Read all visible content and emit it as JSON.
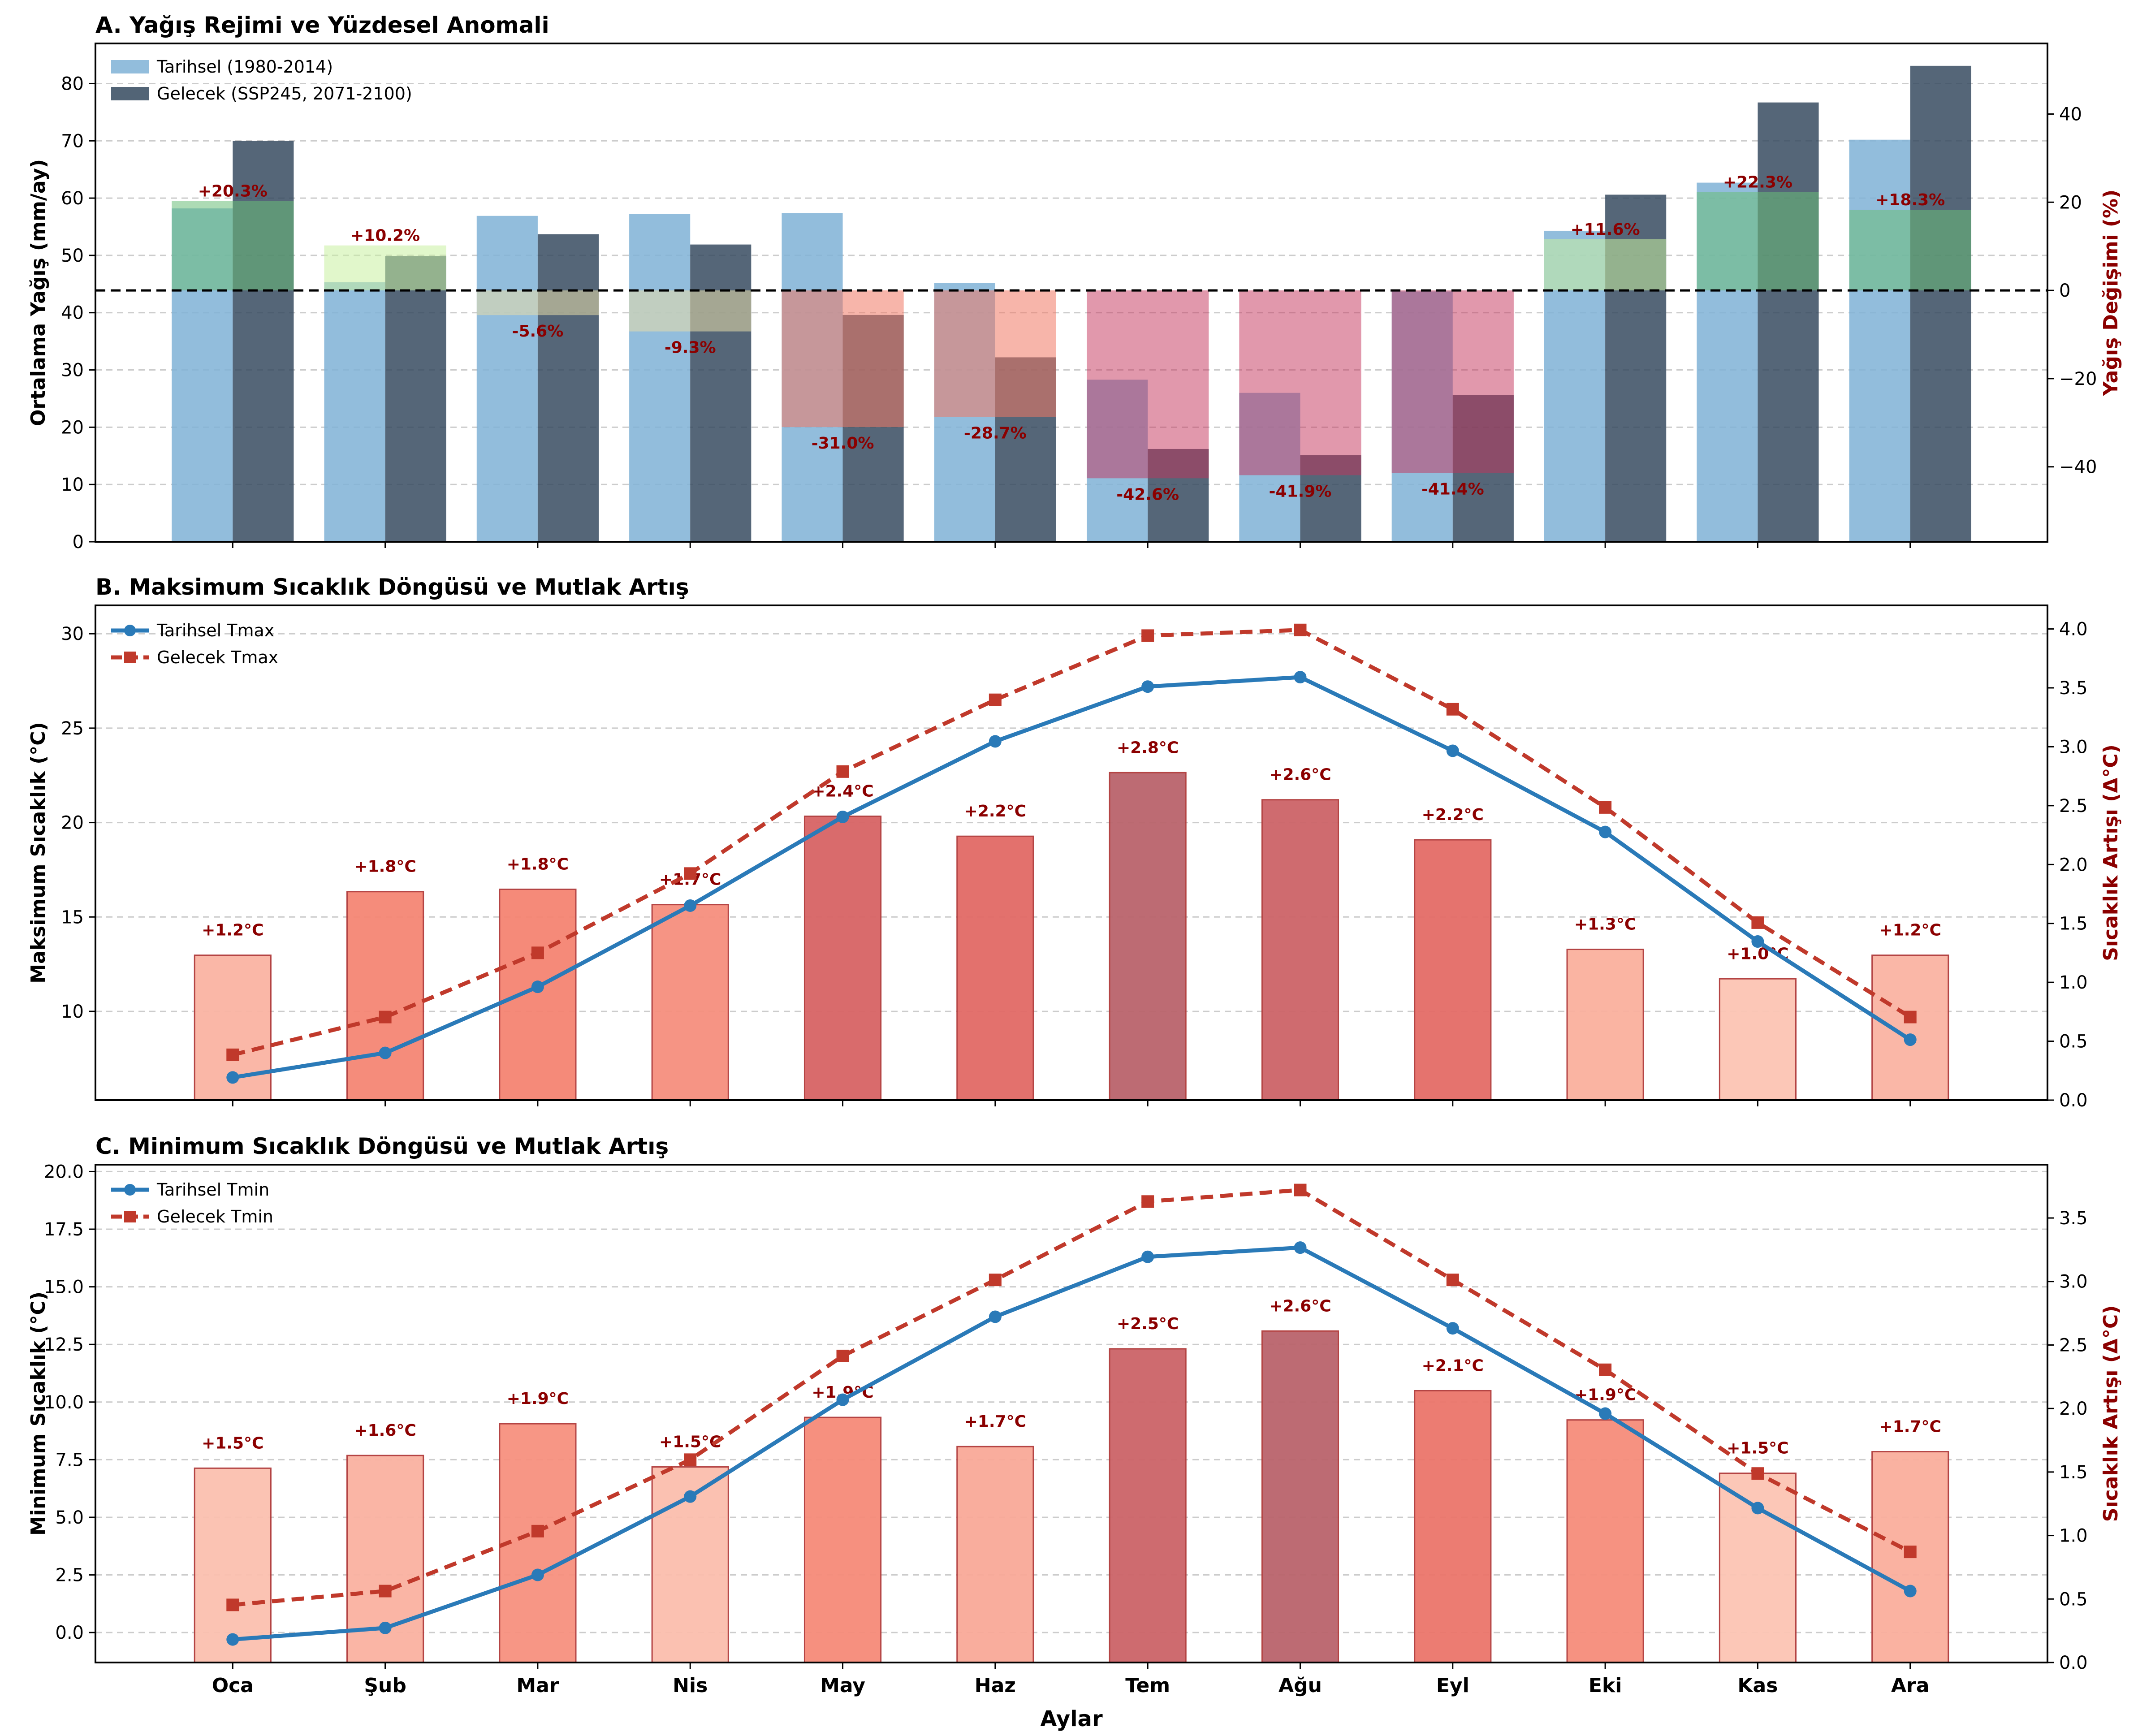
{
  "chart_data": [
    {
      "type": "bar",
      "title": "A. Yağış Rejimi ve Yüzdesel Anomali",
      "xlabel": "",
      "ylabel": "Ortalama Yağış (mm/ay)",
      "ylabel_right": "Yağış Değişimi (%)",
      "categories": [
        "Oca",
        "Şub",
        "Mar",
        "Nis",
        "May",
        "Haz",
        "Tem",
        "Ağu",
        "Eyl",
        "Eki",
        "Kas",
        "Ara"
      ],
      "ylim": [
        0,
        87
      ],
      "yticks": [
        0,
        10,
        20,
        30,
        40,
        50,
        60,
        70,
        80
      ],
      "ylim_right": [
        -57,
        56
      ],
      "yticks_right": [
        -40,
        -20,
        0,
        20,
        40
      ],
      "grid": "y-dashed",
      "legend": "top-left",
      "series": [
        {
          "name": "Tarihsel (1980-2014)",
          "color": "#7fb2d6",
          "values": [
            58.2,
            45.3,
            56.9,
            57.2,
            57.4,
            45.2,
            28.3,
            26.0,
            43.7,
            54.3,
            62.7,
            70.2
          ]
        },
        {
          "name": "Gelecek (SSP245, 2071-2100)",
          "color": "#34495e",
          "values": [
            70.0,
            49.9,
            53.7,
            51.9,
            39.6,
            32.2,
            16.2,
            15.1,
            25.6,
            60.6,
            76.7,
            83.1
          ]
        }
      ],
      "change_pct": [
        20.3,
        10.2,
        -5.6,
        -9.3,
        -31.0,
        -28.7,
        -42.6,
        -41.9,
        -41.4,
        11.6,
        22.3,
        18.3
      ],
      "change_labels": [
        "+20.3%",
        "+10.2%",
        "-5.6%",
        "-9.3%",
        "-31.0%",
        "-28.7%",
        "-42.6%",
        "-41.9%",
        "-41.4%",
        "+11.6%",
        "+22.3%",
        "+18.3%"
      ],
      "label_color": "#8b0000",
      "zero_line": "dashed"
    },
    {
      "type": "line",
      "title": "B. Maksimum Sıcaklık Döngüsü ve Mutlak Artış",
      "xlabel": "",
      "ylabel": "Maksimum Sıcaklık (°C)",
      "ylabel_right": "Sıcaklık Artışı (Δ°C)",
      "categories": [
        "Oca",
        "Şub",
        "Mar",
        "Nis",
        "May",
        "Haz",
        "Tem",
        "Ağu",
        "Eyl",
        "Eki",
        "Kas",
        "Ara"
      ],
      "ylim": [
        5.3,
        31.5
      ],
      "yticks": [
        10,
        15,
        20,
        25,
        30
      ],
      "ylim_right": [
        0,
        4.2
      ],
      "yticks_right": [
        0.0,
        0.5,
        1.0,
        1.5,
        2.0,
        2.5,
        3.0,
        3.5,
        4.0
      ],
      "grid": "y-dashed",
      "legend": "top-left",
      "series": [
        {
          "name": "Tarihsel Tmax",
          "color": "#2a7ab8",
          "style": "solid",
          "marker": "circle",
          "values": [
            6.5,
            7.8,
            11.3,
            15.6,
            20.3,
            24.3,
            27.2,
            27.7,
            23.8,
            19.5,
            13.7,
            8.5
          ]
        },
        {
          "name": "Gelecek Tmax",
          "color": "#c0392b",
          "style": "dashed",
          "marker": "square",
          "values": [
            7.7,
            9.7,
            13.1,
            17.3,
            22.7,
            26.5,
            29.9,
            30.2,
            26.0,
            20.8,
            14.7,
            9.7
          ]
        }
      ],
      "delta_values": [
        1.23,
        1.77,
        1.79,
        1.66,
        2.41,
        2.24,
        2.78,
        2.55,
        2.21,
        1.28,
        1.03,
        1.23
      ],
      "delta_labels": [
        "+1.2°C",
        "+1.8°C",
        "+1.8°C",
        "+1.7°C",
        "+2.4°C",
        "+2.2°C",
        "+2.8°C",
        "+2.6°C",
        "+2.2°C",
        "+1.3°C",
        "+1.0°C",
        "+1.2°C"
      ],
      "label_color": "#8b0000"
    },
    {
      "type": "line",
      "title": "C. Minimum Sıcaklık Döngüsü ve Mutlak Artış",
      "xlabel": "Aylar",
      "ylabel": "Minimum Sıcaklık (°C)",
      "ylabel_right": "Sıcaklık Artışı (Δ°C)",
      "categories": [
        "Oca",
        "Şub",
        "Mar",
        "Nis",
        "May",
        "Haz",
        "Tem",
        "Ağu",
        "Eyl",
        "Eki",
        "Kas",
        "Ara"
      ],
      "ylim": [
        -1.3,
        20.3
      ],
      "yticks": [
        0.0,
        2.5,
        5.0,
        7.5,
        10.0,
        12.5,
        15.0,
        17.5,
        20.0
      ],
      "yticks_labels": [
        "0.0",
        "2.5",
        "5.0",
        "7.5",
        "10.0",
        "12.5",
        "15.0",
        "17.5",
        "20.0"
      ],
      "ylim_right": [
        0,
        3.92
      ],
      "yticks_right": [
        0.0,
        0.5,
        1.0,
        1.5,
        2.0,
        2.5,
        3.0,
        3.5
      ],
      "grid": "y-dashed",
      "legend": "top-left",
      "series": [
        {
          "name": "Tarihsel Tmin",
          "color": "#2a7ab8",
          "style": "solid",
          "marker": "circle",
          "values": [
            -0.3,
            0.2,
            2.5,
            5.9,
            10.1,
            13.7,
            16.3,
            16.7,
            13.2,
            9.5,
            5.4,
            1.8
          ]
        },
        {
          "name": "Gelecek Tmin",
          "color": "#c0392b",
          "style": "dashed",
          "marker": "square",
          "values": [
            1.2,
            1.8,
            4.4,
            7.5,
            12.0,
            15.3,
            18.7,
            19.2,
            15.3,
            11.4,
            6.9,
            3.5
          ]
        }
      ],
      "delta_values": [
        1.53,
        1.63,
        1.88,
        1.54,
        1.93,
        1.7,
        2.47,
        2.61,
        2.14,
        1.91,
        1.49,
        1.66
      ],
      "delta_labels": [
        "+1.5°C",
        "+1.6°C",
        "+1.9°C",
        "+1.5°C",
        "+1.9°C",
        "+1.7°C",
        "+2.5°C",
        "+2.6°C",
        "+2.1°C",
        "+1.9°C",
        "+1.5°C",
        "+1.7°C"
      ],
      "label_color": "#8b0000"
    }
  ]
}
